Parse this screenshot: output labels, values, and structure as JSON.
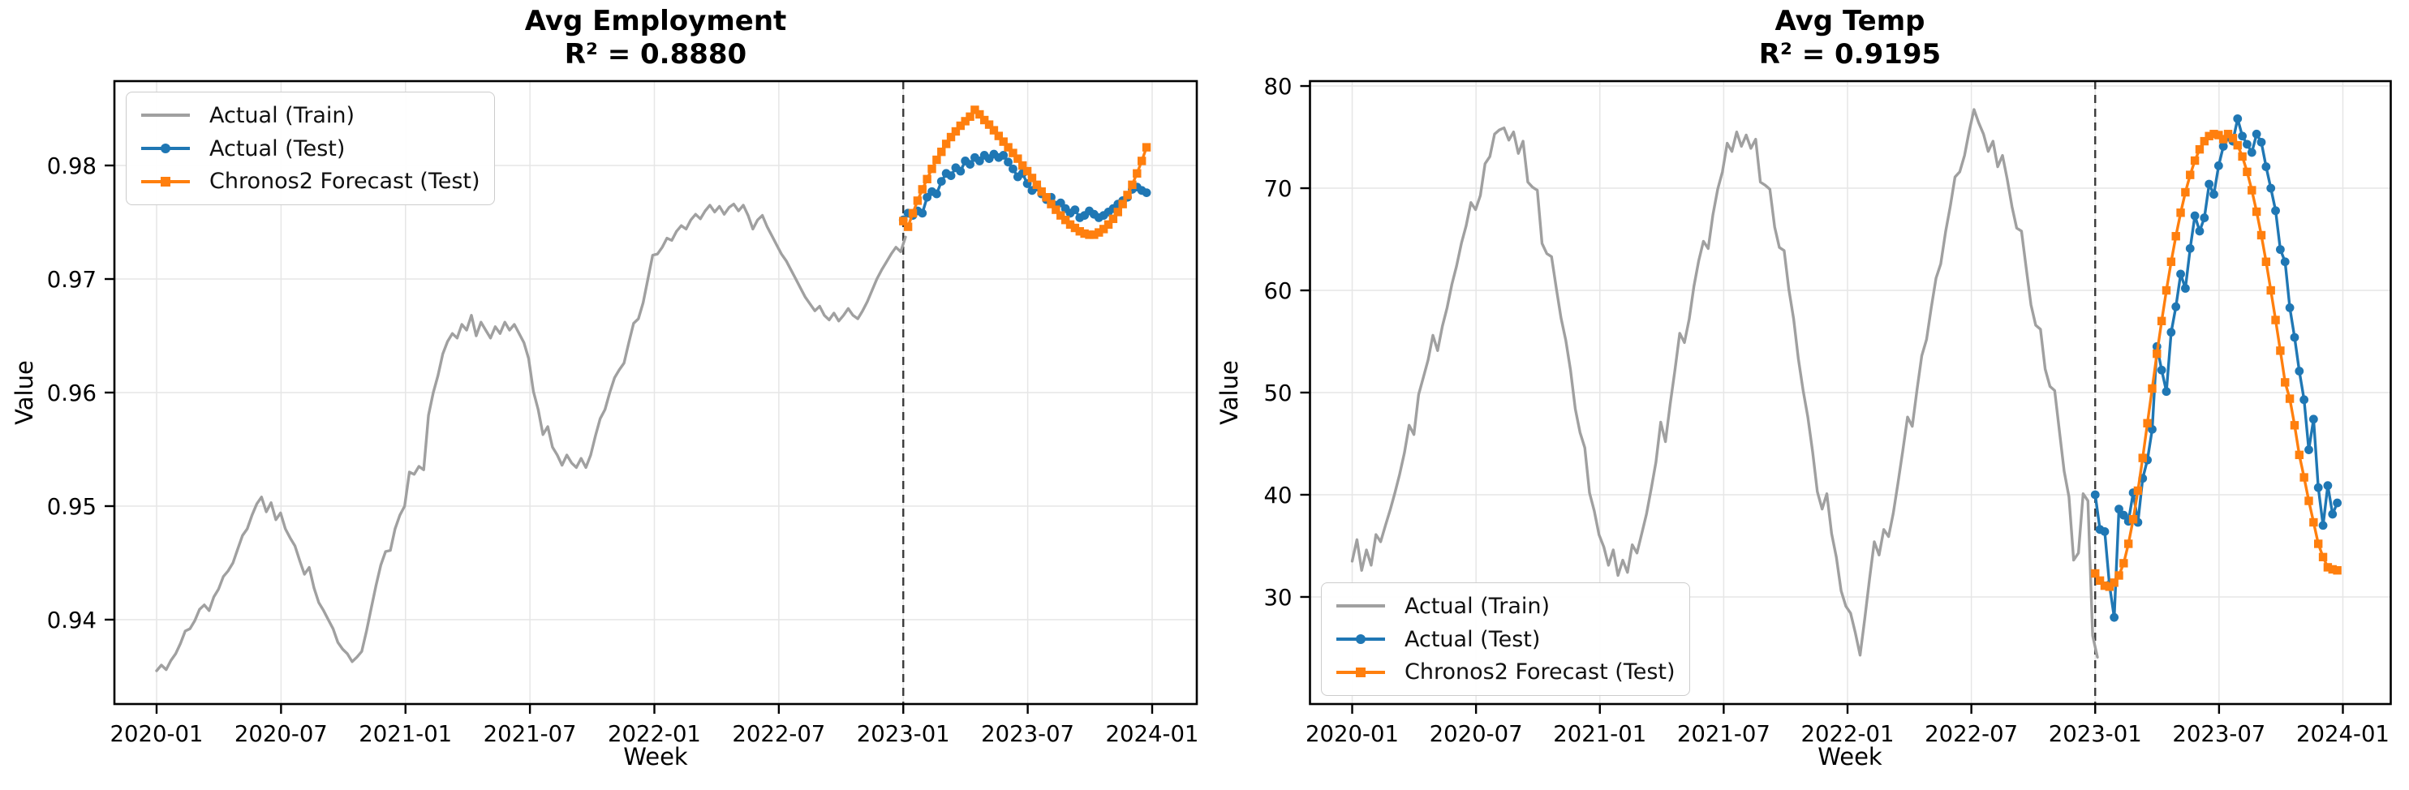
{
  "colors": {
    "train": "#a0a0a0",
    "test": "#1f77b4",
    "forecast": "#ff7f0e",
    "grid": "#e6e6e6",
    "spine": "#000000",
    "split_line": "#3a3a3a",
    "legend_border": "#cccccc",
    "background": "#ffffff"
  },
  "legend": {
    "items": [
      {
        "label": "Actual (Train)",
        "series": "train",
        "marker": "none"
      },
      {
        "label": "Actual (Test)",
        "series": "test",
        "marker": "circle"
      },
      {
        "label": "Chronos2 Forecast (Test)",
        "series": "forecast",
        "marker": "square"
      }
    ]
  },
  "chart_data": [
    {
      "type": "line",
      "title": "Avg Employment",
      "subtitle": "R² = 0.8880",
      "r_squared": 0.888,
      "xlabel": "Week",
      "ylabel": "Value",
      "grid": true,
      "legend_position": "upper-left",
      "xlim": [
        2019.8305,
        2024.1793
      ],
      "ylim": [
        0.93257,
        0.98743
      ],
      "split_x": 2023.0,
      "xticks": [
        {
          "v": 2020.0,
          "label": "2020-01"
        },
        {
          "v": 2020.5,
          "label": "2020-07"
        },
        {
          "v": 2021.0,
          "label": "2021-01"
        },
        {
          "v": 2021.5,
          "label": "2021-07"
        },
        {
          "v": 2022.0,
          "label": "2022-01"
        },
        {
          "v": 2022.5,
          "label": "2022-07"
        },
        {
          "v": 2023.0,
          "label": "2023-01"
        },
        {
          "v": 2023.5,
          "label": "2023-07"
        },
        {
          "v": 2024.0,
          "label": "2024-01"
        }
      ],
      "yticks": [
        {
          "v": 0.94,
          "label": "0.94"
        },
        {
          "v": 0.95,
          "label": "0.95"
        },
        {
          "v": 0.96,
          "label": "0.96"
        },
        {
          "v": 0.97,
          "label": "0.97"
        },
        {
          "v": 0.98,
          "label": "0.98"
        }
      ],
      "series": [
        {
          "name": "Actual (Train)",
          "key": "train",
          "marker": "none",
          "x0": 2020.0,
          "dx": 0.019165,
          "values": [
            0.9355,
            0.936,
            0.9356,
            0.9364,
            0.937,
            0.9379,
            0.939,
            0.9392,
            0.9399,
            0.9409,
            0.9413,
            0.9408,
            0.942,
            0.9427,
            0.9438,
            0.9443,
            0.945,
            0.9462,
            0.9474,
            0.948,
            0.9492,
            0.9502,
            0.9508,
            0.9495,
            0.9503,
            0.9488,
            0.9494,
            0.948,
            0.9472,
            0.9465,
            0.9452,
            0.944,
            0.9446,
            0.9428,
            0.9415,
            0.9408,
            0.94,
            0.9392,
            0.938,
            0.9374,
            0.937,
            0.9363,
            0.9367,
            0.9372,
            0.939,
            0.941,
            0.943,
            0.9448,
            0.946,
            0.9461,
            0.948,
            0.9492,
            0.95,
            0.953,
            0.9528,
            0.9535,
            0.9532,
            0.958,
            0.96,
            0.9615,
            0.9634,
            0.9645,
            0.9652,
            0.9648,
            0.966,
            0.9655,
            0.9668,
            0.965,
            0.9662,
            0.9655,
            0.9648,
            0.9658,
            0.9652,
            0.9662,
            0.9655,
            0.966,
            0.9652,
            0.9644,
            0.963,
            0.9601,
            0.9585,
            0.9563,
            0.957,
            0.9552,
            0.9545,
            0.9536,
            0.9545,
            0.9538,
            0.9534,
            0.9542,
            0.9534,
            0.9545,
            0.9562,
            0.9577,
            0.9585,
            0.96,
            0.9613,
            0.962,
            0.9626,
            0.9644,
            0.9661,
            0.9665,
            0.9679,
            0.97,
            0.9721,
            0.9722,
            0.9728,
            0.9736,
            0.9734,
            0.9742,
            0.9747,
            0.9744,
            0.9752,
            0.9757,
            0.9753,
            0.976,
            0.9765,
            0.9759,
            0.9764,
            0.9757,
            0.9763,
            0.9766,
            0.976,
            0.9765,
            0.9756,
            0.9744,
            0.9752,
            0.9756,
            0.9746,
            0.9738,
            0.973,
            0.9722,
            0.9716,
            0.9708,
            0.97,
            0.9692,
            0.9684,
            0.9678,
            0.9672,
            0.9676,
            0.9668,
            0.9664,
            0.967,
            0.9663,
            0.9668,
            0.9674,
            0.9668,
            0.9665,
            0.9672,
            0.968,
            0.969,
            0.97,
            0.9708,
            0.9715,
            0.9722,
            0.9728,
            0.9724,
            0.9737
          ]
        },
        {
          "name": "Actual (Test)",
          "key": "test",
          "marker": "circle",
          "x0": 2023.0,
          "dx": 0.019165,
          "values": [
            0.9752,
            0.9758,
            0.9756,
            0.976,
            0.9758,
            0.9772,
            0.9777,
            0.9775,
            0.9786,
            0.9793,
            0.9791,
            0.9798,
            0.9795,
            0.9804,
            0.9801,
            0.9807,
            0.9804,
            0.9809,
            0.9806,
            0.981,
            0.9807,
            0.9809,
            0.9803,
            0.9797,
            0.979,
            0.9793,
            0.9784,
            0.9778,
            0.9781,
            0.9775,
            0.977,
            0.9772,
            0.9765,
            0.9767,
            0.9762,
            0.9758,
            0.9761,
            0.9754,
            0.9756,
            0.976,
            0.9757,
            0.9754,
            0.9756,
            0.9759,
            0.9762,
            0.9766,
            0.9769,
            0.9772,
            0.9779,
            0.9781,
            0.9778,
            0.9776
          ]
        },
        {
          "name": "Chronos2 Forecast (Test)",
          "key": "forecast",
          "marker": "square",
          "x0": 2023.0,
          "dx": 0.019165,
          "values": [
            0.9751,
            0.9746,
            0.9758,
            0.9769,
            0.9779,
            0.9788,
            0.9797,
            0.9805,
            0.9812,
            0.9819,
            0.9825,
            0.983,
            0.9835,
            0.9839,
            0.9843,
            0.9849,
            0.9845,
            0.984,
            0.9836,
            0.9831,
            0.9826,
            0.9821,
            0.9816,
            0.9811,
            0.9806,
            0.98,
            0.9795,
            0.9789,
            0.9783,
            0.9777,
            0.9772,
            0.9766,
            0.9761,
            0.9756,
            0.9752,
            0.9748,
            0.9745,
            0.9742,
            0.974,
            0.9739,
            0.9739,
            0.9741,
            0.9744,
            0.9748,
            0.9753,
            0.9759,
            0.9766,
            0.9774,
            0.9783,
            0.9793,
            0.9804,
            0.9816
          ]
        }
      ]
    },
    {
      "type": "line",
      "title": "Avg Temp",
      "subtitle": "R² = 0.9195",
      "r_squared": 0.9195,
      "xlabel": "Week",
      "ylabel": "Value",
      "grid": true,
      "legend_position": "lower-left",
      "xlim": [
        2019.8296,
        2024.1933
      ],
      "ylim": [
        19.52,
        80.48
      ],
      "split_x": 2023.0,
      "xticks": [
        {
          "v": 2020.0,
          "label": "2020-01"
        },
        {
          "v": 2020.5,
          "label": "2020-07"
        },
        {
          "v": 2021.0,
          "label": "2021-01"
        },
        {
          "v": 2021.5,
          "label": "2021-07"
        },
        {
          "v": 2022.0,
          "label": "2022-01"
        },
        {
          "v": 2022.5,
          "label": "2022-07"
        },
        {
          "v": 2023.0,
          "label": "2023-01"
        },
        {
          "v": 2023.5,
          "label": "2023-07"
        },
        {
          "v": 2024.0,
          "label": "2024-01"
        }
      ],
      "yticks": [
        {
          "v": 30,
          "label": "30"
        },
        {
          "v": 40,
          "label": "40"
        },
        {
          "v": 50,
          "label": "50"
        },
        {
          "v": 60,
          "label": "60"
        },
        {
          "v": 70,
          "label": "70"
        },
        {
          "v": 80,
          "label": "80"
        }
      ],
      "series": [
        {
          "name": "Actual (Train)",
          "key": "train",
          "marker": "none",
          "x0": 2020.0,
          "dx": 0.019165,
          "values": [
            33.5,
            35.6,
            32.6,
            34.6,
            33.1,
            36.1,
            35.4,
            37.0,
            38.5,
            40.2,
            42.0,
            44.1,
            46.8,
            45.9,
            49.8,
            51.5,
            53.2,
            55.6,
            54.1,
            56.5,
            58.3,
            60.6,
            62.4,
            64.6,
            66.3,
            68.6,
            67.9,
            69.3,
            72.4,
            73.1,
            75.3,
            75.7,
            75.9,
            74.7,
            75.5,
            73.4,
            74.6,
            70.6,
            70.1,
            69.8,
            64.6,
            63.6,
            63.3,
            60.2,
            57.3,
            55.1,
            52.2,
            48.4,
            46.1,
            44.6,
            40.2,
            38.4,
            36.1,
            34.9,
            33.1,
            34.6,
            32.1,
            33.6,
            32.4,
            35.1,
            34.3,
            36.2,
            38.1,
            40.6,
            43.2,
            47.1,
            45.2,
            48.9,
            52.2,
            55.8,
            54.9,
            57.2,
            60.4,
            62.9,
            64.8,
            64.1,
            67.4,
            69.9,
            71.6,
            74.4,
            73.6,
            75.5,
            74.1,
            75.2,
            73.9,
            74.8,
            70.6,
            70.3,
            69.9,
            66.2,
            64.2,
            63.9,
            60.1,
            57.2,
            53.3,
            50.2,
            47.6,
            44.2,
            40.3,
            38.6,
            40.1,
            36.2,
            33.9,
            30.6,
            29.1,
            28.4,
            26.5,
            24.3,
            27.9,
            31.8,
            35.4,
            34.1,
            36.6,
            35.9,
            38.2,
            41.2,
            44.3,
            47.6,
            46.7,
            50.3,
            53.6,
            55.2,
            58.3,
            61.2,
            62.6,
            65.7,
            68.2,
            71.1,
            71.6,
            73.2,
            75.6,
            77.7,
            76.4,
            75.3,
            73.6,
            74.6,
            72.1,
            73.2,
            70.9,
            68.2,
            66.1,
            65.8,
            62.2,
            58.6,
            56.6,
            56.2,
            52.3,
            50.6,
            50.2,
            46.2,
            42.3,
            39.8,
            33.6,
            34.3,
            40.1,
            39.4,
            26.2,
            24.1
          ]
        },
        {
          "name": "Actual (Test)",
          "key": "test",
          "marker": "circle",
          "x0": 2023.0,
          "dx": 0.019165,
          "values": [
            40.0,
            36.6,
            36.4,
            31.2,
            28.0,
            38.6,
            38.0,
            37.4,
            40.2,
            37.3,
            41.6,
            43.4,
            46.4,
            54.5,
            52.2,
            50.1,
            55.9,
            58.4,
            61.6,
            60.2,
            64.1,
            67.3,
            65.8,
            67.1,
            70.4,
            69.4,
            72.2,
            74.1,
            75.0,
            74.6,
            76.8,
            75.1,
            74.3,
            73.5,
            75.3,
            74.5,
            72.1,
            70.0,
            67.8,
            64.0,
            62.8,
            58.3,
            55.4,
            52.1,
            49.3,
            44.4,
            47.4,
            40.7,
            37.0,
            40.9,
            38.1,
            39.2
          ]
        },
        {
          "name": "Chronos2 Forecast (Test)",
          "key": "forecast",
          "marker": "square",
          "x0": 2023.0,
          "dx": 0.019165,
          "values": [
            32.3,
            31.6,
            31.1,
            31.0,
            31.4,
            32.1,
            33.3,
            35.2,
            37.6,
            40.4,
            43.6,
            47.0,
            50.4,
            53.8,
            57.0,
            60.0,
            62.8,
            65.3,
            67.6,
            69.6,
            71.3,
            72.7,
            73.8,
            74.6,
            75.1,
            75.3,
            75.2,
            74.8,
            75.3,
            74.9,
            74.2,
            73.1,
            71.6,
            69.8,
            67.7,
            65.4,
            62.8,
            60.0,
            57.1,
            54.1,
            51.0,
            49.4,
            46.8,
            43.9,
            41.7,
            39.4,
            37.3,
            35.2,
            33.9,
            32.9,
            32.7,
            32.6
          ]
        }
      ]
    }
  ]
}
